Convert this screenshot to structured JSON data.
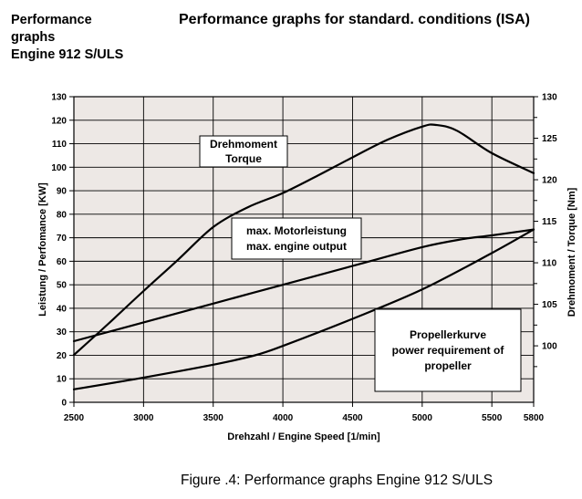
{
  "header": {
    "left_lines": [
      "Performance",
      "graphs",
      "Engine 912 S/ULS"
    ],
    "right_title": "Performance graphs for standard. conditions (ISA)"
  },
  "caption": "Figure .4: Performance graphs Engine 912 S/ULS",
  "chart_data": {
    "type": "line",
    "xlabel": "Drehzahl / Engine Speed [1/min]",
    "ylabel": "Leistung / Perfomance [KW]",
    "y2label": "Drehmoment / Torque [Nm]",
    "xlim": [
      2500,
      5800
    ],
    "ylim": [
      0,
      130
    ],
    "y2lim": [
      93.2,
      130
    ],
    "x_ticks": [
      "2500",
      "3000",
      "3500",
      "4000",
      "4500",
      "5000",
      "5500",
      "5800"
    ],
    "x_tick_values": [
      2500,
      3000,
      3500,
      4000,
      4500,
      5000,
      5500,
      5800
    ],
    "y_ticks": [
      0,
      10,
      20,
      30,
      40,
      50,
      60,
      70,
      80,
      90,
      100,
      110,
      120,
      130
    ],
    "y2_ticks": [
      100,
      105,
      110,
      115,
      120,
      125,
      130
    ],
    "grid": true,
    "background": "#ede8e5",
    "line_color": "#000000",
    "series": [
      {
        "axis": "right",
        "x": [
          2500,
          2750,
          3000,
          3250,
          3500,
          3750,
          4000,
          4250,
          4500,
          4750,
          5000,
          5100,
          5250,
          5500,
          5800
        ],
        "y": [
          98.9,
          102.7,
          106.6,
          110.4,
          114.3,
          116.7,
          118.4,
          120.5,
          122.7,
          124.8,
          126.4,
          126.6,
          125.9,
          123.2,
          120.8
        ]
      },
      {
        "axis": "left",
        "x": [
          2500,
          3000,
          3500,
          4000,
          4500,
          5000,
          5300,
          5500,
          5800
        ],
        "y": [
          26,
          34,
          42,
          50,
          58,
          66,
          69.5,
          71,
          73.5
        ]
      },
      {
        "axis": "left",
        "x": [
          2500,
          3000,
          3500,
          3800,
          4000,
          4500,
          5000,
          5500,
          5800
        ],
        "y": [
          5.5,
          10.5,
          16,
          20,
          24,
          35.5,
          48,
          63.5,
          73.5
        ]
      }
    ],
    "annotations": [
      {
        "lines": [
          "Drehmoment",
          "Torque"
        ]
      },
      {
        "lines": [
          "max. Motorleistung",
          "max. engine output"
        ]
      },
      {
        "lines": [
          "Propellerkurve",
          "power requirement of",
          "propeller"
        ]
      }
    ]
  }
}
